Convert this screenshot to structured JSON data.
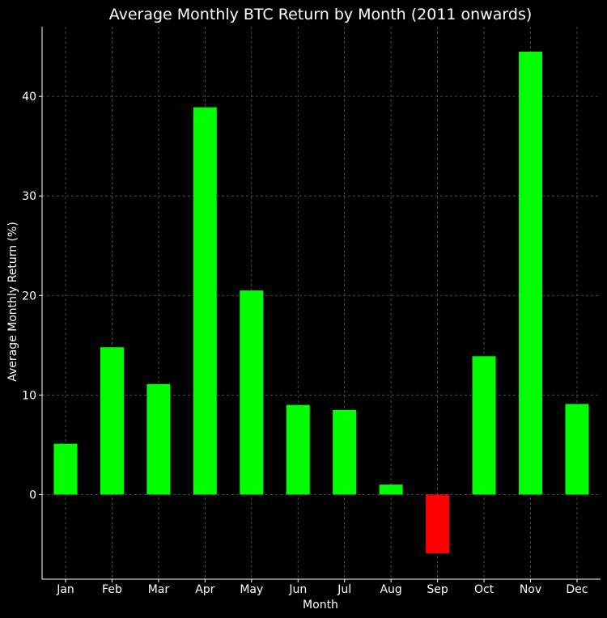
{
  "chart_data": {
    "type": "bar",
    "title": "Average Monthly BTC Return by Month (2011 onwards)",
    "xlabel": "Month",
    "ylabel": "Average Monthly Return (%)",
    "categories": [
      "Jan",
      "Feb",
      "Mar",
      "Apr",
      "May",
      "Jun",
      "Jul",
      "Aug",
      "Sep",
      "Oct",
      "Nov",
      "Dec"
    ],
    "values": [
      5.1,
      14.8,
      11.1,
      38.9,
      20.5,
      9.0,
      8.5,
      1.0,
      -5.9,
      13.9,
      44.5,
      9.1
    ],
    "ylim": [
      -8.5,
      47.0
    ],
    "yticks": [
      0,
      10,
      20,
      30,
      40
    ],
    "grid": true,
    "colors": {
      "positive": "#00ff00",
      "negative": "#ff0000",
      "background": "#000000",
      "text": "#ffffff",
      "grid": "#5a5a5a"
    }
  }
}
